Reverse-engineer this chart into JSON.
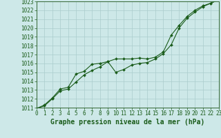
{
  "title": "Graphe pression niveau de la mer (hPa)",
  "background_color": "#cde8e8",
  "grid_color": "#aacccc",
  "line_color": "#1a5c1a",
  "marker_color": "#1a5c1a",
  "x_min": 0,
  "x_max": 23,
  "y_min": 1011,
  "y_max": 1023,
  "x_ticks": [
    0,
    1,
    2,
    3,
    4,
    5,
    6,
    7,
    8,
    9,
    10,
    11,
    12,
    13,
    14,
    15,
    16,
    17,
    18,
    19,
    20,
    21,
    22,
    23
  ],
  "y_ticks": [
    1011,
    1012,
    1013,
    1014,
    1015,
    1016,
    1017,
    1018,
    1019,
    1020,
    1021,
    1022,
    1023
  ],
  "series1_x": [
    0,
    1,
    2,
    3,
    4,
    5,
    6,
    7,
    8,
    9,
    10,
    11,
    12,
    13,
    14,
    15,
    16,
    17,
    18,
    19,
    20,
    21,
    22,
    23
  ],
  "series1_y": [
    1010.9,
    1011.3,
    1012.1,
    1013.1,
    1013.3,
    1014.8,
    1015.1,
    1015.9,
    1016.0,
    1016.2,
    1015.0,
    1015.3,
    1015.8,
    1016.0,
    1016.1,
    1016.5,
    1017.1,
    1018.1,
    1020.0,
    1021.1,
    1021.8,
    1022.4,
    1022.8,
    1023.2
  ],
  "series2_x": [
    0,
    1,
    2,
    3,
    4,
    5,
    6,
    7,
    8,
    9,
    10,
    11,
    12,
    13,
    14,
    15,
    16,
    17,
    18,
    19,
    20,
    21,
    22,
    23
  ],
  "series2_y": [
    1010.9,
    1011.2,
    1012.0,
    1012.9,
    1013.1,
    1013.9,
    1014.7,
    1015.2,
    1015.6,
    1016.2,
    1016.5,
    1016.5,
    1016.5,
    1016.6,
    1016.5,
    1016.7,
    1017.3,
    1019.2,
    1020.3,
    1021.3,
    1022.0,
    1022.5,
    1022.8,
    1023.2
  ],
  "title_fontsize": 7,
  "tick_fontsize": 5.5
}
